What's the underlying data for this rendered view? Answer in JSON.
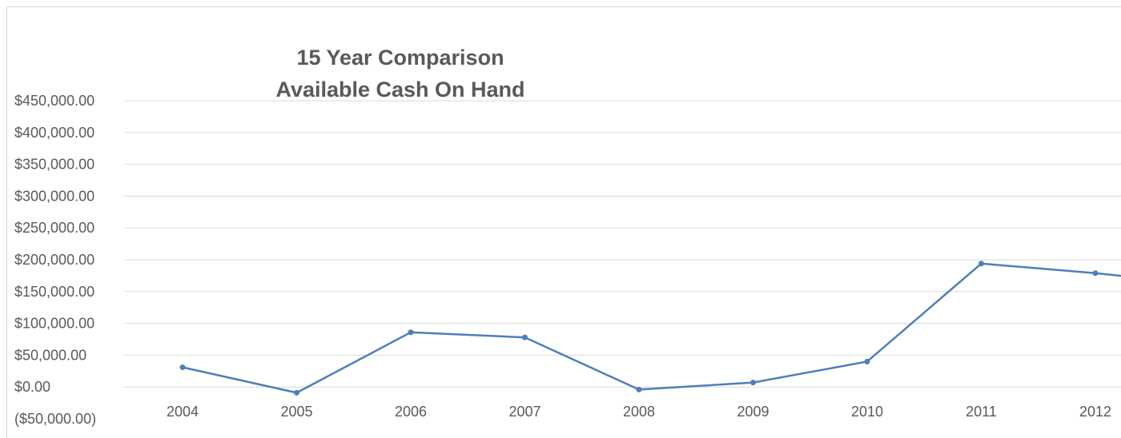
{
  "chart_data": {
    "type": "line",
    "title_lines": [
      "15 Year Comparison",
      "Available Cash On Hand"
    ],
    "categories": [
      "2004",
      "2005",
      "2006",
      "2007",
      "2008",
      "2009",
      "2010",
      "2011",
      "2012"
    ],
    "series": [
      {
        "values": [
          31000,
          -9000,
          86000,
          78000,
          -4000,
          7000,
          40000,
          194000,
          179000
        ],
        "trailing_value": 160000,
        "color": "#4F7EBB"
      }
    ],
    "ylim": [
      -50000,
      450000
    ],
    "y_ticks": [
      450000,
      400000,
      350000,
      300000,
      250000,
      200000,
      150000,
      100000,
      50000,
      0,
      -50000
    ],
    "y_tick_labels": [
      "$450,000.00",
      "$400,000.00",
      "$350,000.00",
      "$300,000.00",
      "$250,000.00",
      "$200,000.00",
      "$150,000.00",
      "$100,000.00",
      "$50,000.00",
      "$0.00",
      "($50,000.00)"
    ],
    "grid": true,
    "xlabel": "",
    "ylabel": ""
  }
}
